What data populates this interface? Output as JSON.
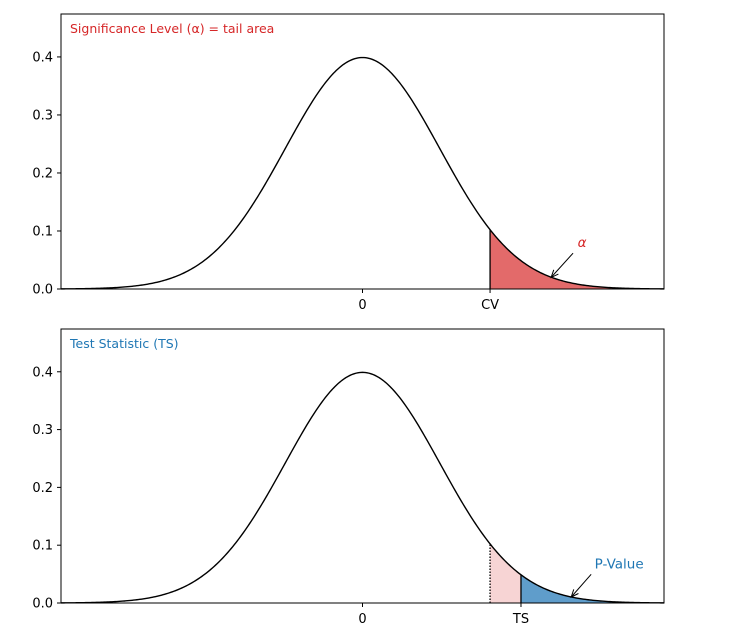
{
  "chart_data": [
    {
      "type": "area",
      "title": "Significance Level (α) = tail area",
      "title_color": "#d62728",
      "curve": "standard normal pdf",
      "xlim": [
        -3.9,
        3.9
      ],
      "ylim": [
        0,
        0.474
      ],
      "yticks": [
        0.0,
        0.1,
        0.2,
        0.3,
        0.4
      ],
      "ytick_labels": [
        "0.0",
        "0.1",
        "0.2",
        "0.3",
        "0.4"
      ],
      "xticks": [
        0,
        1.65
      ],
      "xtick_labels": [
        "0",
        "CV"
      ],
      "critical_value": 1.65,
      "shaded": [
        {
          "from": 1.65,
          "to": 3.9,
          "color": "#e36a6a",
          "edge": "solid"
        }
      ],
      "annotation": {
        "text": "α",
        "color": "#d62728",
        "text_x": 2.84,
        "text_y": 0.079,
        "arrow_x": 2.44,
        "arrow_y": 0.02
      }
    },
    {
      "type": "area",
      "title": "Test Statistic (TS)",
      "title_color": "#1f77b4",
      "curve": "standard normal pdf",
      "xlim": [
        -3.9,
        3.9
      ],
      "ylim": [
        0,
        0.474
      ],
      "yticks": [
        0.0,
        0.1,
        0.2,
        0.3,
        0.4
      ],
      "ytick_labels": [
        "0.0",
        "0.1",
        "0.2",
        "0.3",
        "0.4"
      ],
      "xticks": [
        0,
        2.05
      ],
      "xtick_labels": [
        "0",
        "TS"
      ],
      "critical_value": 1.65,
      "test_statistic": 2.05,
      "shaded": [
        {
          "from": 1.65,
          "to": 2.05,
          "color": "#f7d4d4",
          "edge": "dotted"
        },
        {
          "from": 2.05,
          "to": 3.9,
          "color": "#5f9dcb",
          "edge": "solid"
        }
      ],
      "annotation": {
        "text": "P-Value",
        "color": "#1f77b4",
        "text_x": 3.32,
        "text_y": 0.067,
        "arrow_x": 2.7,
        "arrow_y": 0.0104
      }
    }
  ]
}
